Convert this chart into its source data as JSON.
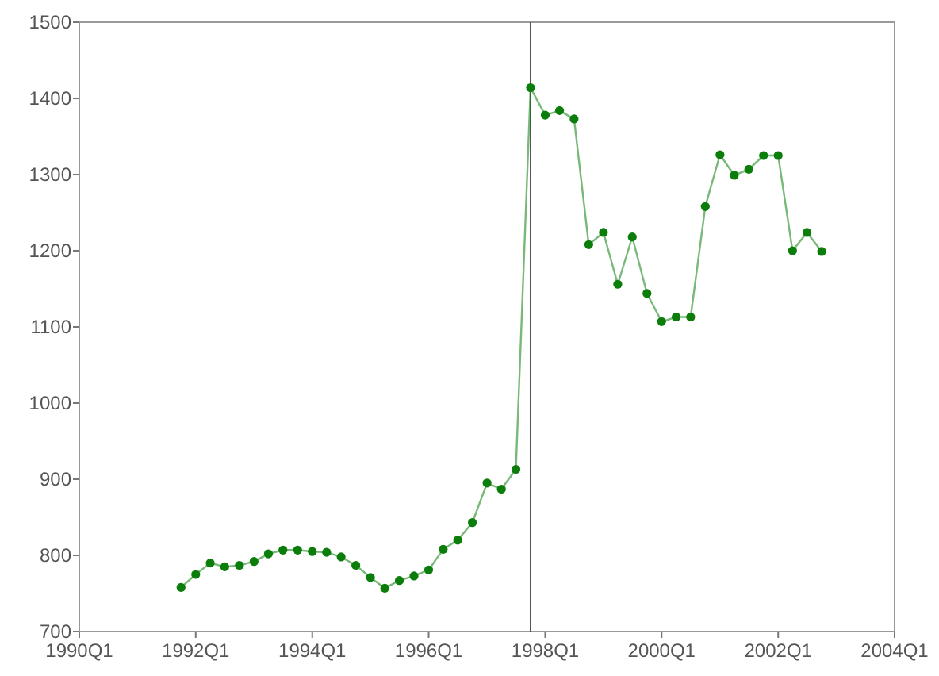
{
  "chart_data": {
    "type": "line",
    "marker": "circle",
    "x": [
      "1991-10",
      "1992-01",
      "1992-04",
      "1992-07",
      "1992-10",
      "1993-01",
      "1993-04",
      "1993-07",
      "1993-10",
      "1994-01",
      "1994-04",
      "1994-07",
      "1994-10",
      "1995-01",
      "1995-04",
      "1995-07",
      "1995-10",
      "1996-01",
      "1996-04",
      "1996-07",
      "1996-10",
      "1997-01",
      "1997-04",
      "1997-07",
      "1997-10",
      "1998-01",
      "1998-04",
      "1998-07",
      "1998-10",
      "1999-01",
      "1999-04",
      "1999-07",
      "1999-10",
      "2000-01",
      "2000-04",
      "2000-07",
      "2000-10",
      "2001-01",
      "2001-04",
      "2001-07",
      "2001-10",
      "2002-01",
      "2002-04",
      "2002-07",
      "2002-10"
    ],
    "series": [
      {
        "color": "#0a7d0a",
        "values": [
          758,
          775,
          790,
          785,
          787,
          792,
          802,
          807,
          807,
          805,
          804,
          798,
          787,
          771,
          757,
          767,
          773,
          781,
          808,
          820,
          843,
          895,
          887,
          913,
          1414,
          1378,
          1384,
          1373,
          1208,
          1224,
          1156,
          1218,
          1144,
          1107,
          1113,
          1113,
          1258,
          1326,
          1299,
          1307,
          1325,
          1325,
          1200,
          1224,
          1199
        ]
      }
    ],
    "xlim": [
      "1990-01",
      "2004-01"
    ],
    "xticks": [
      {
        "value": "1990-01",
        "label": "1990Q1"
      },
      {
        "value": "1992-01",
        "label": "1992Q1"
      },
      {
        "value": "1994-01",
        "label": "1994Q1"
      },
      {
        "value": "1996-01",
        "label": "1996Q1"
      },
      {
        "value": "1998-01",
        "label": "1998Q1"
      },
      {
        "value": "2000-01",
        "label": "2000Q1"
      },
      {
        "value": "2002-01",
        "label": "2002Q1"
      },
      {
        "value": "2004-01",
        "label": "2004Q1"
      }
    ],
    "ylim": [
      700,
      1500
    ],
    "yticks": [
      700,
      800,
      900,
      1000,
      1100,
      1200,
      1300,
      1400,
      1500
    ],
    "ref_lines": [
      {
        "axis": "x",
        "value": "1997-10",
        "color": "#555555"
      }
    ]
  }
}
